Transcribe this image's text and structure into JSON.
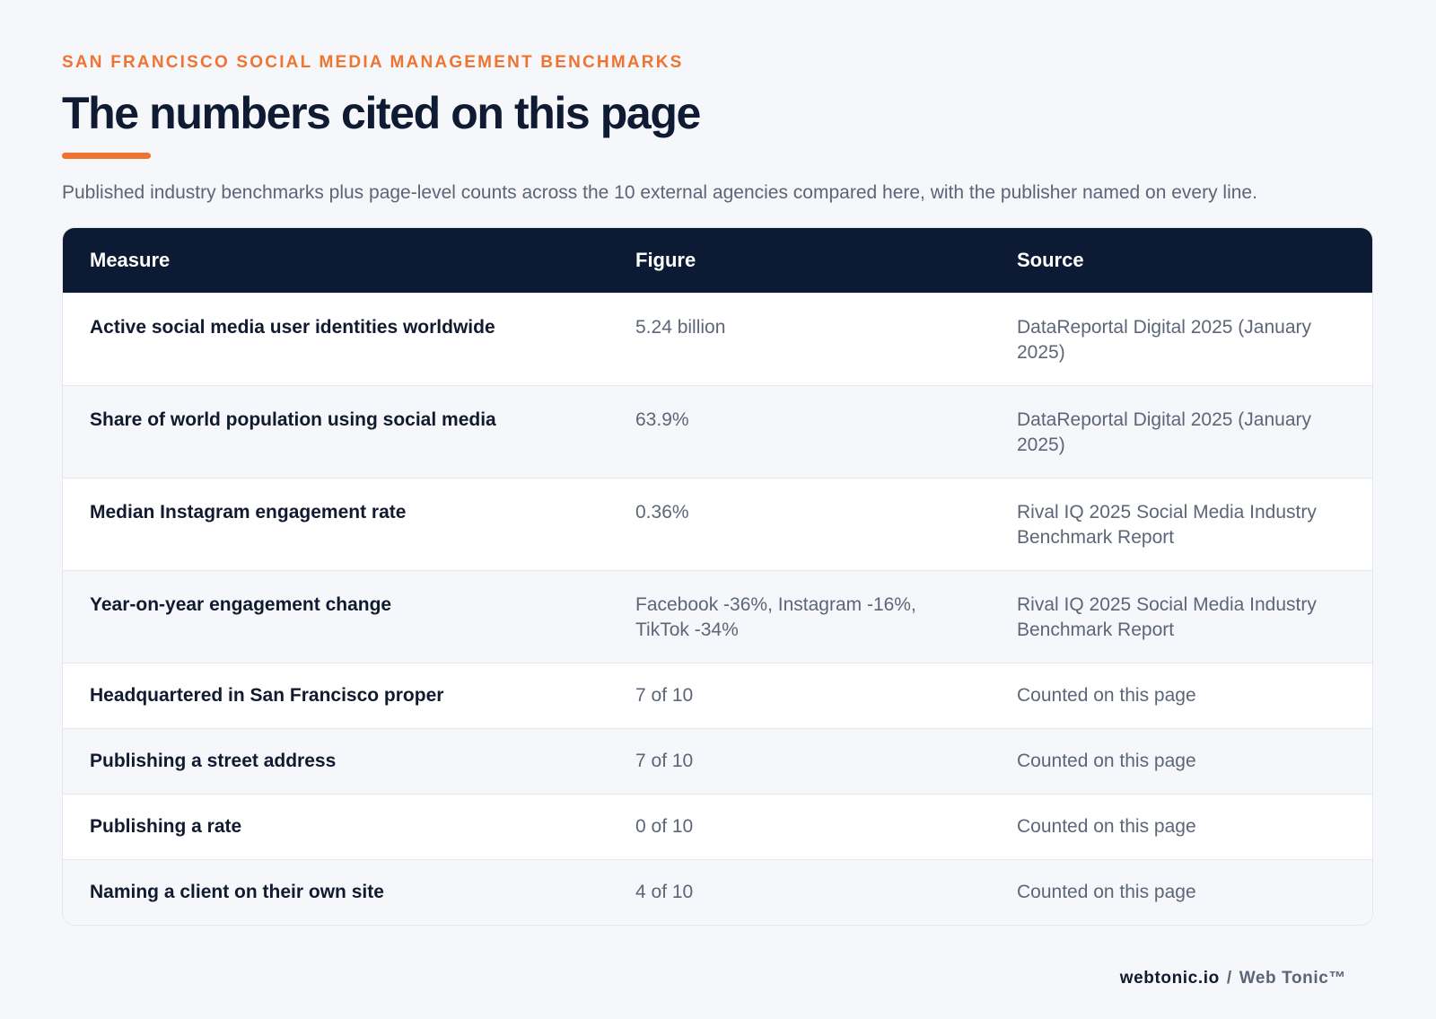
{
  "header": {
    "eyebrow": "SAN FRANCISCO SOCIAL MEDIA MANAGEMENT BENCHMARKS",
    "title": "The numbers cited on this page",
    "subtitle": "Published industry benchmarks plus page-level counts across the 10 external agencies compared here, with the publisher named on every line."
  },
  "table": {
    "columns": [
      "Measure",
      "Figure",
      "Source"
    ],
    "rows": [
      {
        "measure": "Active social media user identities worldwide",
        "figure": "5.24 billion",
        "source": "DataReportal Digital 2025 (January 2025)"
      },
      {
        "measure": "Share of world population using social media",
        "figure": "63.9%",
        "source": "DataReportal Digital 2025 (January 2025)"
      },
      {
        "measure": "Median Instagram engagement rate",
        "figure": "0.36%",
        "source": "Rival IQ 2025 Social Media Industry Benchmark Report"
      },
      {
        "measure": "Year-on-year engagement change",
        "figure": "Facebook -36%, Instagram -16%, TikTok -34%",
        "source": "Rival IQ 2025 Social Media Industry Benchmark Report"
      },
      {
        "measure": "Headquartered in San Francisco proper",
        "figure": "7 of 10",
        "source": "Counted on this page"
      },
      {
        "measure": "Publishing a street address",
        "figure": "7 of 10",
        "source": "Counted on this page"
      },
      {
        "measure": "Publishing a rate",
        "figure": "0 of 10",
        "source": "Counted on this page"
      },
      {
        "measure": "Naming a client on their own site",
        "figure": "4 of 10",
        "source": "Counted on this page"
      }
    ]
  },
  "footer": {
    "domain": "webtonic.io",
    "separator": "/",
    "brand": "Web Tonic™"
  },
  "colors": {
    "accent": "#ef7432",
    "header_bg": "#0d1a33",
    "page_bg": "#f5f7fa"
  }
}
